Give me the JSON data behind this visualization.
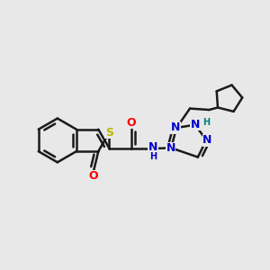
{
  "bg_color": "#e8e8e8",
  "bond_color": "#1a1a1a",
  "bond_width": 1.8,
  "S_color": "#b8b800",
  "O_color": "#ff0000",
  "N_color": "#0000cc",
  "NH_color": "#008080",
  "font_size": 9,
  "fig_size": [
    3.0,
    3.0
  ],
  "dpi": 100,
  "xlim": [
    0,
    10
  ],
  "ylim": [
    0,
    10
  ]
}
